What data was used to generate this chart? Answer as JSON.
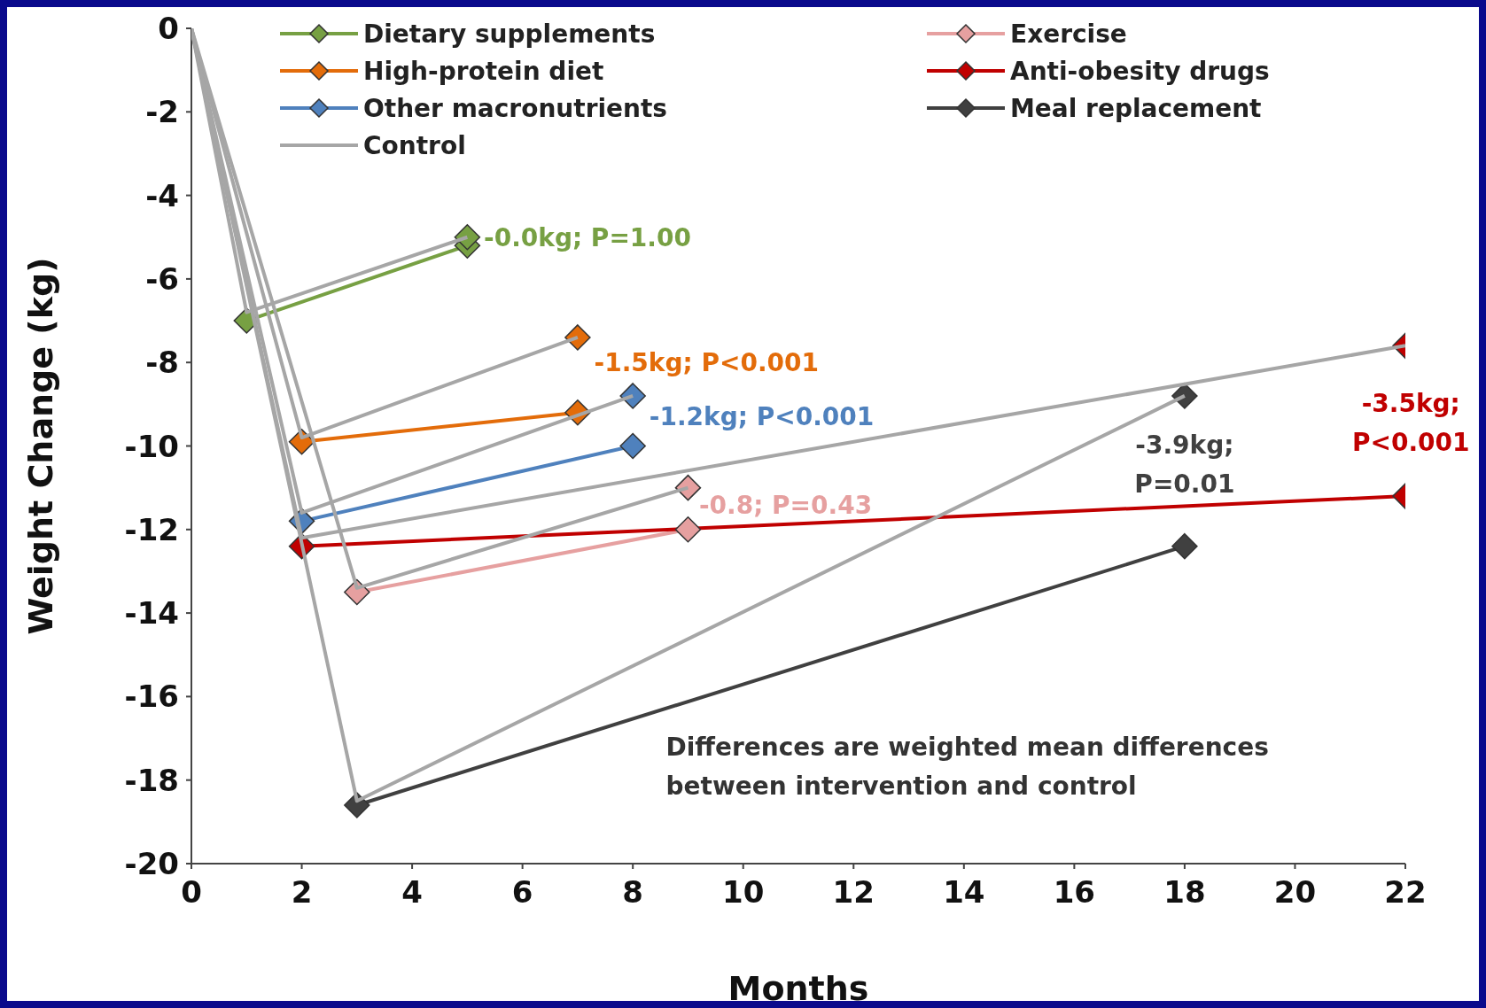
{
  "chart_data": {
    "type": "line",
    "xlabel": "Months",
    "ylabel": "Weight Change (kg)",
    "xlim": [
      0,
      22
    ],
    "xticks": [
      0,
      2,
      4,
      6,
      8,
      10,
      12,
      14,
      16,
      18,
      20,
      22
    ],
    "ylim": [
      -20,
      0
    ],
    "yticks": [
      -20,
      -18,
      -16,
      -14,
      -12,
      -10,
      -8,
      -6,
      -4,
      -2,
      0
    ],
    "legend": "top left",
    "marker": "diamond",
    "line_style": "solid",
    "series": [
      {
        "name": "Dietary supplements",
        "color": "#77a043",
        "x": [
          1,
          5
        ],
        "values": [
          -7.0,
          -5.2
        ]
      },
      {
        "name": "Exercise",
        "color": "#e6a0a0",
        "x": [
          3,
          9
        ],
        "values": [
          -13.5,
          -12.0
        ]
      },
      {
        "name": "High-protein diet",
        "color": "#e36c0a",
        "x": [
          2,
          7
        ],
        "values": [
          -9.9,
          -9.2
        ]
      },
      {
        "name": "Anti-obesity drugs",
        "color": "#c00000",
        "x": [
          2,
          22
        ],
        "values": [
          -12.4,
          -11.2
        ]
      },
      {
        "name": "Other macronutrients",
        "color": "#4f81bd",
        "x": [
          2,
          8
        ],
        "values": [
          -11.8,
          -10.0
        ]
      },
      {
        "name": "Meal replacement",
        "color": "#404040",
        "x": [
          3,
          18
        ],
        "values": [
          -18.6,
          -12.4
        ]
      },
      {
        "name": "Control",
        "color": "#a6a6a6",
        "marker": "none",
        "x": [
          0,
          1,
          5
        ],
        "values": [
          0,
          -6.8,
          -5.0
        ]
      },
      {
        "color": "#a6a6a6",
        "marker": "none",
        "x": [
          0,
          3,
          9
        ],
        "values": [
          0,
          -13.4,
          -11.0
        ]
      },
      {
        "color": "#a6a6a6",
        "marker": "none",
        "x": [
          0,
          2,
          7
        ],
        "values": [
          0,
          -9.8,
          -7.4
        ]
      },
      {
        "color": "#a6a6a6",
        "marker": "none",
        "x": [
          0,
          2,
          22
        ],
        "values": [
          0,
          -12.2,
          -7.6
        ]
      },
      {
        "color": "#a6a6a6",
        "marker": "none",
        "x": [
          0,
          2,
          8
        ],
        "values": [
          0,
          -11.6,
          -8.8
        ]
      },
      {
        "color": "#a6a6a6",
        "marker": "none",
        "x": [
          0,
          3,
          18
        ],
        "values": [
          0,
          -18.5,
          -8.8
        ]
      },
      {
        "type": "scatter",
        "color": "#77a043",
        "x": [
          5
        ],
        "values": [
          -5.0
        ]
      },
      {
        "type": "scatter",
        "color": "#e6a0a0",
        "x": [
          9
        ],
        "values": [
          -11.0
        ]
      },
      {
        "type": "scatter",
        "color": "#e36c0a",
        "x": [
          7
        ],
        "values": [
          -7.4
        ]
      },
      {
        "type": "scatter",
        "color": "#c00000",
        "x": [
          22
        ],
        "values": [
          -7.6
        ]
      },
      {
        "type": "scatter",
        "color": "#4f81bd",
        "x": [
          8
        ],
        "values": [
          -8.8
        ]
      },
      {
        "type": "scatter",
        "color": "#404040",
        "x": [
          18
        ],
        "values": [
          -8.8
        ]
      }
    ],
    "annotations": [
      "-0.0kg; P=1.00",
      "-0.8; P=0.43",
      "-1.5kg; P<0.001",
      "-3.5kg;\nP<0.001",
      "-1.2kg; P<0.001",
      "-3.9kg;\nP=0.01",
      "Differences are weighted mean differences\nbetween intervention and control"
    ]
  }
}
